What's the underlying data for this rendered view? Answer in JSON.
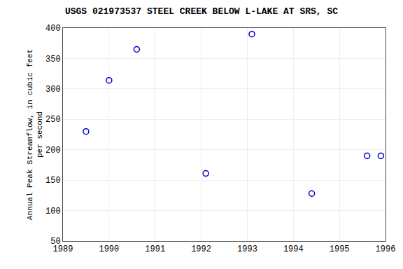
{
  "chart_data": {
    "type": "scatter",
    "title": "USGS 021973537 STEEL CREEK BELOW L-LAKE AT SRS, SC",
    "ylabel": "Annual Peak Streamflow, in cubic feet\nper second",
    "x": [
      1989.5,
      1990.0,
      1990.6,
      1992.1,
      1993.1,
      1994.4,
      1995.6,
      1995.9
    ],
    "values": [
      230,
      314,
      365,
      161,
      390,
      128,
      190,
      190
    ],
    "xlim": [
      1989,
      1996
    ],
    "ylim": [
      50,
      400
    ],
    "xticks": [
      1989,
      1990,
      1991,
      1992,
      1993,
      1994,
      1995,
      1996
    ],
    "yticks": [
      50,
      100,
      150,
      200,
      250,
      300,
      350,
      400
    ],
    "color": "#0000CC",
    "marker": "open circle",
    "grid": true
  }
}
